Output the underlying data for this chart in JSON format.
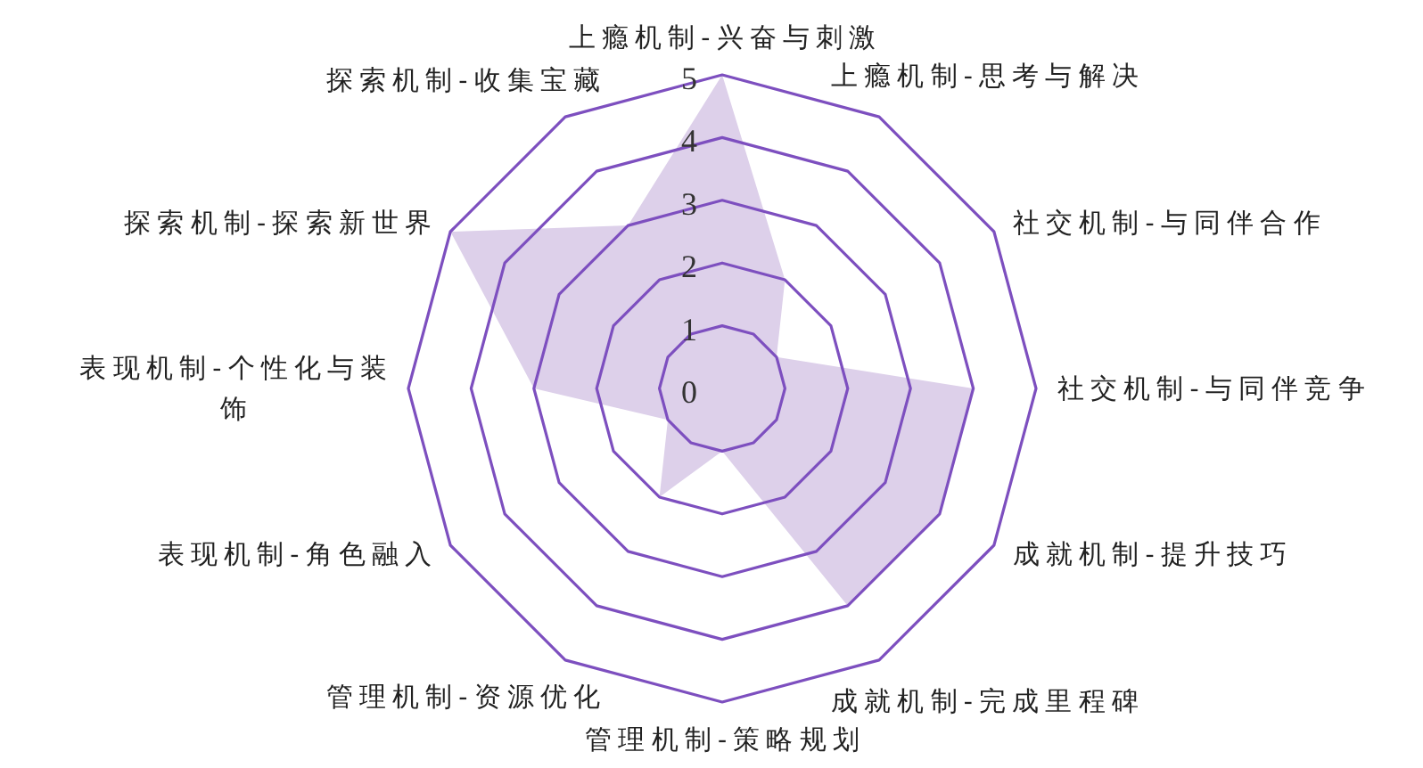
{
  "chart_data": {
    "type": "radar",
    "categories": [
      "上瘾机制-兴奋与刺激",
      "上瘾机制-思考与解决",
      "社交机制-与同伴合作",
      "社交机制-与同伴竞争",
      "成就机制-提升技巧",
      "成就机制-完成里程碑",
      "管理机制-策略规划",
      "管理机制-资源优化",
      "表现机制-角色融入",
      "表现机制-个性化与装饰",
      "探索机制-探索新世界",
      "探索机制-收集宝藏"
    ],
    "series": [
      {
        "color": "#ddd0ea",
        "values": [
          5,
          2,
          1,
          4,
          4,
          4,
          1,
          2,
          1,
          3,
          5,
          3
        ]
      }
    ],
    "ylim": [
      0,
      5
    ],
    "yticks": [
      0,
      1,
      2,
      3,
      4,
      5
    ],
    "grid": true
  }
}
